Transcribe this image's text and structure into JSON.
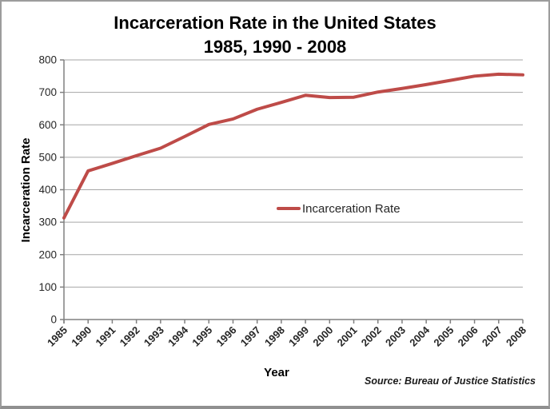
{
  "title": {
    "line1": "Incarceration Rate in the United States",
    "line2": "1985, 1990 - 2008"
  },
  "chart_data": {
    "type": "line",
    "categories": [
      "1985",
      "1990",
      "1991",
      "1992",
      "1993",
      "1994",
      "1995",
      "1996",
      "1997",
      "1998",
      "1999",
      "2000",
      "2001",
      "2002",
      "2003",
      "2004",
      "2005",
      "2006",
      "2007",
      "2008"
    ],
    "series": [
      {
        "name": "Incarceration Rate",
        "values": [
          313,
          458,
          481,
          505,
          528,
          564,
          601,
          618,
          648,
          669,
          691,
          684,
          685,
          701,
          712,
          724,
          737,
          750,
          756,
          754
        ]
      }
    ],
    "xlabel": "Year",
    "ylabel": "Incarceration Rate",
    "ylim": [
      0,
      800
    ],
    "ytick_step": 100,
    "grid": "horizontal",
    "legend_position": "inside-center-right",
    "line_color": "#be4b48",
    "gridline_color": "#a6a6a6",
    "axis_color": "#808080",
    "text_color": "#262626"
  },
  "source_note": "Source: Bureau of Justice Statistics"
}
